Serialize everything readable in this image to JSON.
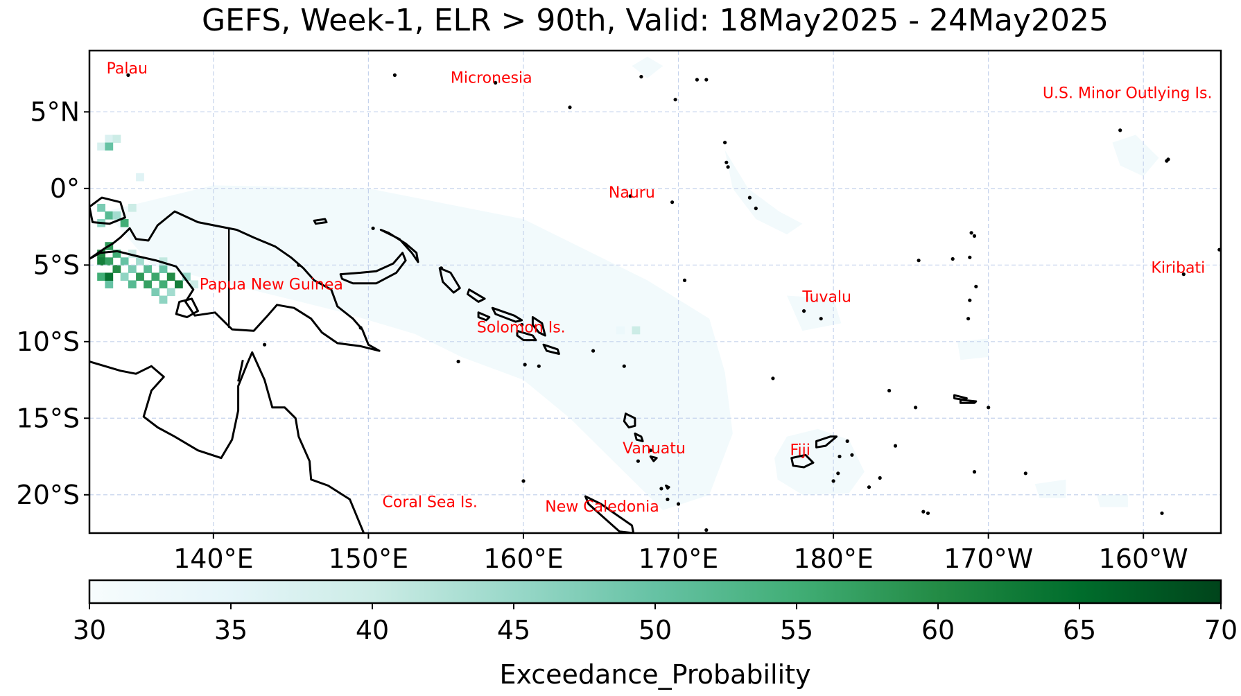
{
  "title": "GEFS, Week-1, ELR > 90th, Valid: 18May2025 - 24May2025",
  "map": {
    "lon_range": [
      132,
      205
    ],
    "lat_range": [
      -22.5,
      9
    ],
    "gridline_color": "#c5d3ec",
    "coast_color": "#000000",
    "label_color": "#ff0000",
    "lat_ticks": [
      {
        "lat": 5,
        "label": "5°N"
      },
      {
        "lat": 0,
        "label": "0°"
      },
      {
        "lat": -5,
        "label": "5°S"
      },
      {
        "lat": -10,
        "label": "10°S"
      },
      {
        "lat": -15,
        "label": "15°S"
      },
      {
        "lat": -20,
        "label": "20°S"
      }
    ],
    "lon_ticks": [
      {
        "lon": 140,
        "label": "140°E"
      },
      {
        "lon": 150,
        "label": "150°E"
      },
      {
        "lon": 160,
        "label": "160°E"
      },
      {
        "lon": 170,
        "label": "170°E"
      },
      {
        "lon": 180,
        "label": "180°E"
      },
      {
        "lon": 190,
        "label": "170°W"
      },
      {
        "lon": 200,
        "label": "160°W"
      }
    ],
    "country_labels": [
      {
        "name": "Palau",
        "lon": 133.1,
        "lat": 7.5
      },
      {
        "name": "Micronesia",
        "lon": 155.3,
        "lat": 6.9
      },
      {
        "name": "U.S. Minor Outlying Is.",
        "lon": 193.5,
        "lat": 5.9
      },
      {
        "name": "Nauru",
        "lon": 165.5,
        "lat": -0.6
      },
      {
        "name": "Kiribati",
        "lon": 200.5,
        "lat": -5.5
      },
      {
        "name": "Papua New Guinea",
        "lon": 139.1,
        "lat": -6.6
      },
      {
        "name": "Tuvalu",
        "lon": 178.0,
        "lat": -7.4
      },
      {
        "name": "Solomon Is.",
        "lon": 157.0,
        "lat": -9.4
      },
      {
        "name": "Vanuatu",
        "lon": 166.4,
        "lat": -17.3
      },
      {
        "name": "Fiji",
        "lon": 177.2,
        "lat": -17.4
      },
      {
        "name": "Coral Sea Is.",
        "lon": 150.9,
        "lat": -20.8
      },
      {
        "name": "New Caledonia",
        "lon": 161.4,
        "lat": -21.1
      }
    ],
    "probability_cells": [
      {
        "lon": 133.0,
        "lat": 3.5,
        "p": 37
      },
      {
        "lon": 133.5,
        "lat": 3.5,
        "p": 40
      },
      {
        "lon": 132.5,
        "lat": 3.0,
        "p": 38
      },
      {
        "lon": 133.0,
        "lat": 3.0,
        "p": 50
      },
      {
        "lon": 135.0,
        "lat": 1.0,
        "p": 36
      },
      {
        "lon": 132.5,
        "lat": -1.0,
        "p": 48
      },
      {
        "lon": 133.0,
        "lat": -1.5,
        "p": 52
      },
      {
        "lon": 133.5,
        "lat": -1.5,
        "p": 44
      },
      {
        "lon": 134.0,
        "lat": -2.0,
        "p": 55
      },
      {
        "lon": 132.5,
        "lat": -2.0,
        "p": 46
      },
      {
        "lon": 134.5,
        "lat": -1.0,
        "p": 40
      },
      {
        "lon": 133.0,
        "lat": -3.5,
        "p": 58
      },
      {
        "lon": 132.5,
        "lat": -4.0,
        "p": 60
      },
      {
        "lon": 133.5,
        "lat": -4.0,
        "p": 55
      },
      {
        "lon": 132.5,
        "lat": -4.5,
        "p": 62
      },
      {
        "lon": 133.0,
        "lat": -4.5,
        "p": 57
      },
      {
        "lon": 134.0,
        "lat": -4.5,
        "p": 50
      },
      {
        "lon": 133.5,
        "lat": -5.0,
        "p": 60
      },
      {
        "lon": 132.5,
        "lat": -5.5,
        "p": 55
      },
      {
        "lon": 134.5,
        "lat": -5.0,
        "p": 48
      },
      {
        "lon": 135.0,
        "lat": -5.5,
        "p": 58
      },
      {
        "lon": 135.5,
        "lat": -5.0,
        "p": 52
      },
      {
        "lon": 136.0,
        "lat": -5.5,
        "p": 56
      },
      {
        "lon": 136.5,
        "lat": -5.0,
        "p": 50
      },
      {
        "lon": 137.0,
        "lat": -5.5,
        "p": 60
      },
      {
        "lon": 137.5,
        "lat": -6.0,
        "p": 62
      },
      {
        "lon": 136.5,
        "lat": -6.0,
        "p": 55
      },
      {
        "lon": 134.0,
        "lat": -5.5,
        "p": 46
      },
      {
        "lon": 134.5,
        "lat": -6.0,
        "p": 52
      },
      {
        "lon": 135.5,
        "lat": -6.0,
        "p": 57
      },
      {
        "lon": 136.0,
        "lat": -6.5,
        "p": 48
      },
      {
        "lon": 137.0,
        "lat": -6.5,
        "p": 44
      },
      {
        "lon": 133.0,
        "lat": -6.0,
        "p": 50
      },
      {
        "lon": 136.5,
        "lat": -7.0,
        "p": 46
      },
      {
        "lon": 138.0,
        "lat": -5.5,
        "p": 45
      },
      {
        "lon": 135.0,
        "lat": -4.5,
        "p": 44
      },
      {
        "lon": 133.0,
        "lat": -5.5,
        "p": 64
      },
      {
        "lon": 134.5,
        "lat": -4.0,
        "p": 40
      },
      {
        "lon": 136.5,
        "lat": -4.5,
        "p": 41
      },
      {
        "lon": 138.5,
        "lat": -6.0,
        "p": 40
      },
      {
        "lon": 167.0,
        "lat": -9.0,
        "p": 40
      },
      {
        "lon": 166.0,
        "lat": -9.0,
        "p": 33
      }
    ]
  },
  "colorbar": {
    "min": 30,
    "max": 70,
    "ticks": [
      "30",
      "35",
      "40",
      "45",
      "50",
      "55",
      "60",
      "65",
      "70"
    ],
    "label": "Exceedance_Probability",
    "stops": [
      "#f7fcfd",
      "#e5f5f9",
      "#ccece6",
      "#99d8c9",
      "#66c2a4",
      "#41ae76",
      "#238b45",
      "#006d2c",
      "#00441b"
    ]
  }
}
